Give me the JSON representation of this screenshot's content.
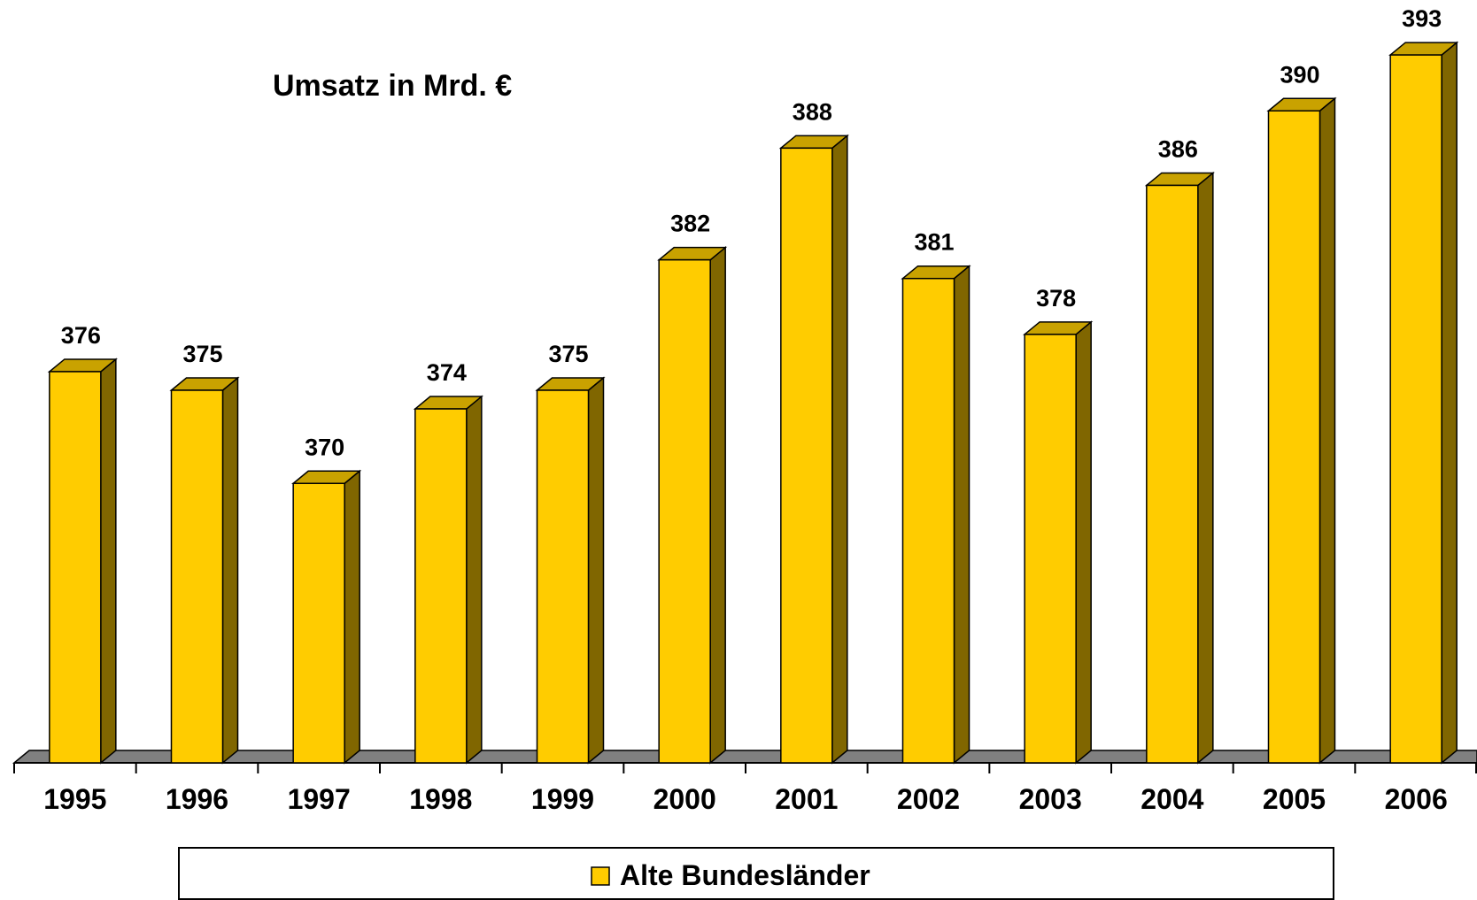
{
  "chart_data": {
    "type": "bar3d",
    "title": "Umsatz in Mrd. €",
    "categories": [
      "1995",
      "1996",
      "1997",
      "1998",
      "1999",
      "2000",
      "2001",
      "2002",
      "2003",
      "2004",
      "2005",
      "2006"
    ],
    "series": [
      {
        "name": "Alte Bundesländer",
        "color": "#ffcc00",
        "values": [
          376,
          375,
          370,
          374,
          375,
          382,
          388,
          381,
          378,
          386,
          390,
          393
        ]
      }
    ],
    "ylim": [
      355,
      395
    ]
  }
}
